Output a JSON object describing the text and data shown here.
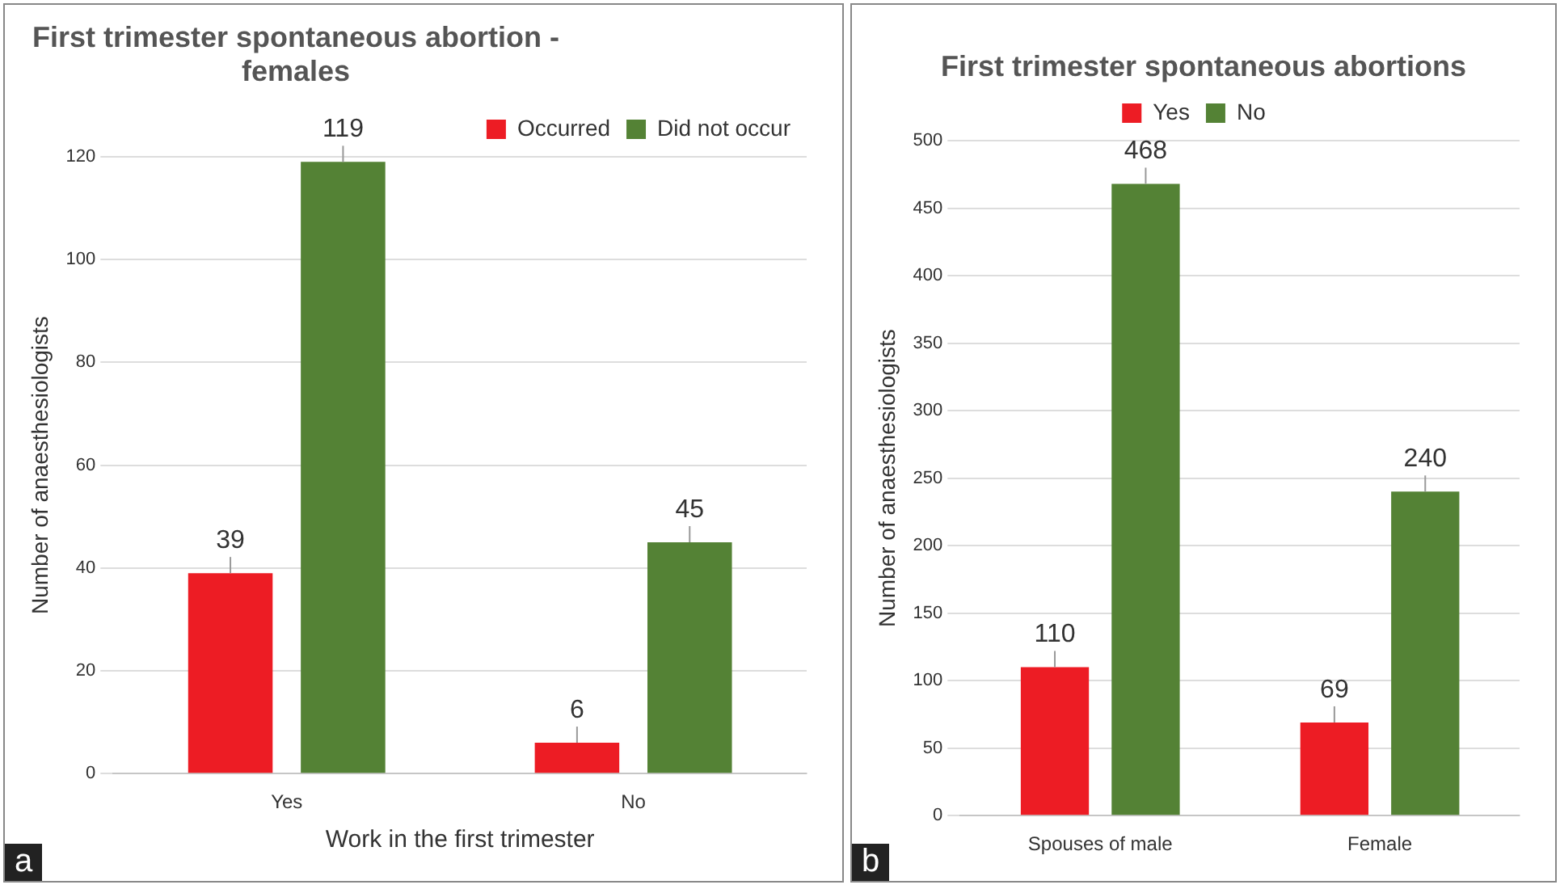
{
  "chart_data": [
    {
      "type": "bar",
      "title": "First trimester spontaneous abortion - females",
      "xlabel": "Work in the first trimester",
      "ylabel": "Number of anaesthesiologists",
      "categories": [
        "Yes",
        "No"
      ],
      "series": [
        {
          "name": "Occurred",
          "color": "#ed1c24",
          "values": [
            39,
            6
          ]
        },
        {
          "name": "Did not occur",
          "color": "#548235",
          "values": [
            119,
            45
          ]
        }
      ],
      "ylim": [
        0,
        120
      ],
      "yticks": [
        0,
        20,
        40,
        60,
        80,
        100,
        120
      ],
      "grid": "y",
      "legend": "top right",
      "data_labels": true,
      "annotations": [
        "a"
      ]
    },
    {
      "type": "bar",
      "title": "First trimester spontaneous abortions",
      "ylabel": "Number of anaesthesiologists",
      "categories": [
        "Spouses of male",
        "Female"
      ],
      "series": [
        {
          "name": "Yes",
          "color": "#ed1c24",
          "values": [
            110,
            69
          ]
        },
        {
          "name": "No",
          "color": "#548235",
          "values": [
            468,
            240
          ]
        }
      ],
      "ylim": [
        0,
        500
      ],
      "yticks": [
        0,
        50,
        100,
        150,
        200,
        250,
        300,
        350,
        400,
        450,
        500
      ],
      "grid": "y",
      "legend": "top",
      "data_labels": true,
      "annotations": [
        "b"
      ]
    }
  ]
}
